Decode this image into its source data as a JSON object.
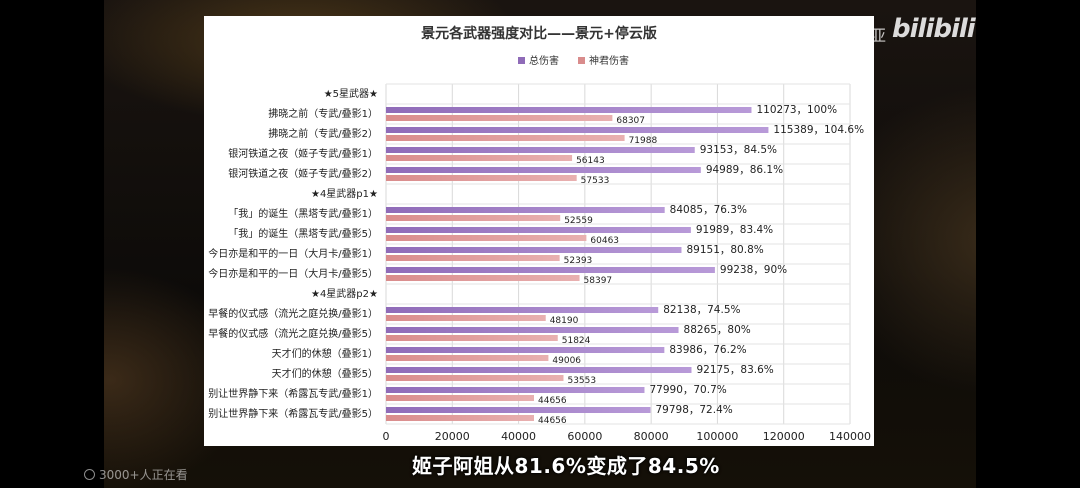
{
  "overlay": {
    "watermark_user": "毛子亚",
    "watermark_logo": "bilibili",
    "viewers": "3000+人正在看",
    "subtitle": "姬子阿姐从81.6%变成了84.5%"
  },
  "colors": {
    "total": "#8f6bb8",
    "total_light": "#b89ad8",
    "sub": "#d98c8c",
    "sub_light": "#e8b0b0"
  },
  "chart_data": {
    "type": "bar",
    "orientation": "horizontal",
    "title": "景元各武器强度对比——景元+停云版",
    "legend_position": "top",
    "grid": true,
    "xlim": [
      0,
      140000
    ],
    "xticks": [
      0,
      20000,
      40000,
      60000,
      80000,
      100000,
      120000,
      140000
    ],
    "series": [
      {
        "name": "总伤害",
        "color": "#8f6bb8"
      },
      {
        "name": "神君伤害",
        "color": "#d98c8c"
      }
    ],
    "rows": [
      {
        "type": "header",
        "label": "★5星武器★"
      },
      {
        "type": "data",
        "label": "拂晓之前（专武/叠影1）",
        "total": 110273,
        "total_label": "110273，100%",
        "sub": 68307
      },
      {
        "type": "data",
        "label": "拂晓之前（专武/叠影2）",
        "total": 115389,
        "total_label": "115389，104.6%",
        "sub": 71988
      },
      {
        "type": "data",
        "label": "银河铁道之夜（姬子专武/叠影1）",
        "total": 93153,
        "total_label": "93153，84.5%",
        "sub": 56143
      },
      {
        "type": "data",
        "label": "银河铁道之夜（姬子专武/叠影2）",
        "total": 94989,
        "total_label": "94989，86.1%",
        "sub": 57533
      },
      {
        "type": "header",
        "label": "★4星武器p1★"
      },
      {
        "type": "data",
        "label": "「我」的诞生（黑塔专武/叠影1）",
        "total": 84085,
        "total_label": "84085，76.3%",
        "sub": 52559
      },
      {
        "type": "data",
        "label": "「我」的诞生（黑塔专武/叠影5）",
        "total": 91989,
        "total_label": "91989，83.4%",
        "sub": 60463
      },
      {
        "type": "data",
        "label": "今日亦是和平的一日（大月卡/叠影1）",
        "total": 89151,
        "total_label": "89151，80.8%",
        "sub": 52393
      },
      {
        "type": "data",
        "label": "今日亦是和平的一日（大月卡/叠影5）",
        "total": 99238,
        "total_label": "99238，90%",
        "sub": 58397
      },
      {
        "type": "header",
        "label": "★4星武器p2★"
      },
      {
        "type": "data",
        "label": "早餐的仪式感（流光之庭兑换/叠影1）",
        "total": 82138,
        "total_label": "82138，74.5%",
        "sub": 48190
      },
      {
        "type": "data",
        "label": "早餐的仪式感（流光之庭兑换/叠影5）",
        "total": 88265,
        "total_label": "88265，80%",
        "sub": 51824
      },
      {
        "type": "data",
        "label": "天才们的休憩（叠影1）",
        "total": 83986,
        "total_label": "83986，76.2%",
        "sub": 49006
      },
      {
        "type": "data",
        "label": "天才们的休憩（叠影5）",
        "total": 92175,
        "total_label": "92175，83.6%",
        "sub": 53553
      },
      {
        "type": "data",
        "label": "别让世界静下来（希露瓦专武/叠影1）",
        "total": 77990,
        "total_label": "77990，70.7%",
        "sub": 44656
      },
      {
        "type": "data",
        "label": "别让世界静下来（希露瓦专武/叠影5）",
        "total": 79798,
        "total_label": "79798，72.4%",
        "sub": 44656
      }
    ]
  }
}
